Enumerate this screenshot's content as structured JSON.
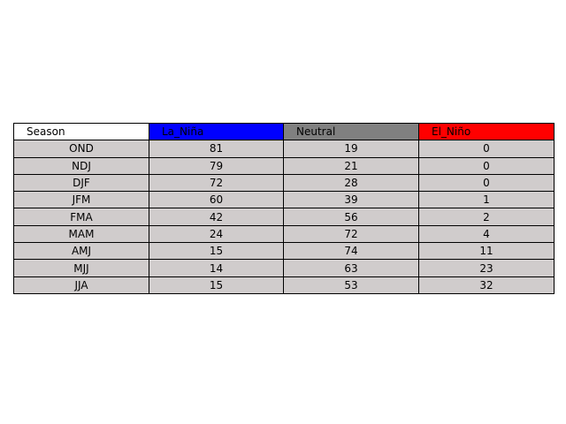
{
  "chart_data": {
    "type": "table",
    "columns": [
      {
        "label": "Season",
        "color": "#ffffff"
      },
      {
        "label": "La_Niña",
        "color": "#0000ff"
      },
      {
        "label": "Neutral",
        "color": "#808080"
      },
      {
        "label": "El_Niño",
        "color": "#ff0000"
      }
    ],
    "cell_color": "#d0cccc",
    "rows": [
      [
        "OND",
        "81",
        "19",
        "0"
      ],
      [
        "NDJ",
        "79",
        "21",
        "0"
      ],
      [
        "DJF",
        "72",
        "28",
        "0"
      ],
      [
        "JFM",
        "60",
        "39",
        "1"
      ],
      [
        "FMA",
        "42",
        "56",
        "2"
      ],
      [
        "MAM",
        "24",
        "72",
        "4"
      ],
      [
        "AMJ",
        "15",
        "74",
        "11"
      ],
      [
        "MJJ",
        "14",
        "63",
        "23"
      ],
      [
        "JJA",
        "15",
        "53",
        "32"
      ]
    ]
  }
}
